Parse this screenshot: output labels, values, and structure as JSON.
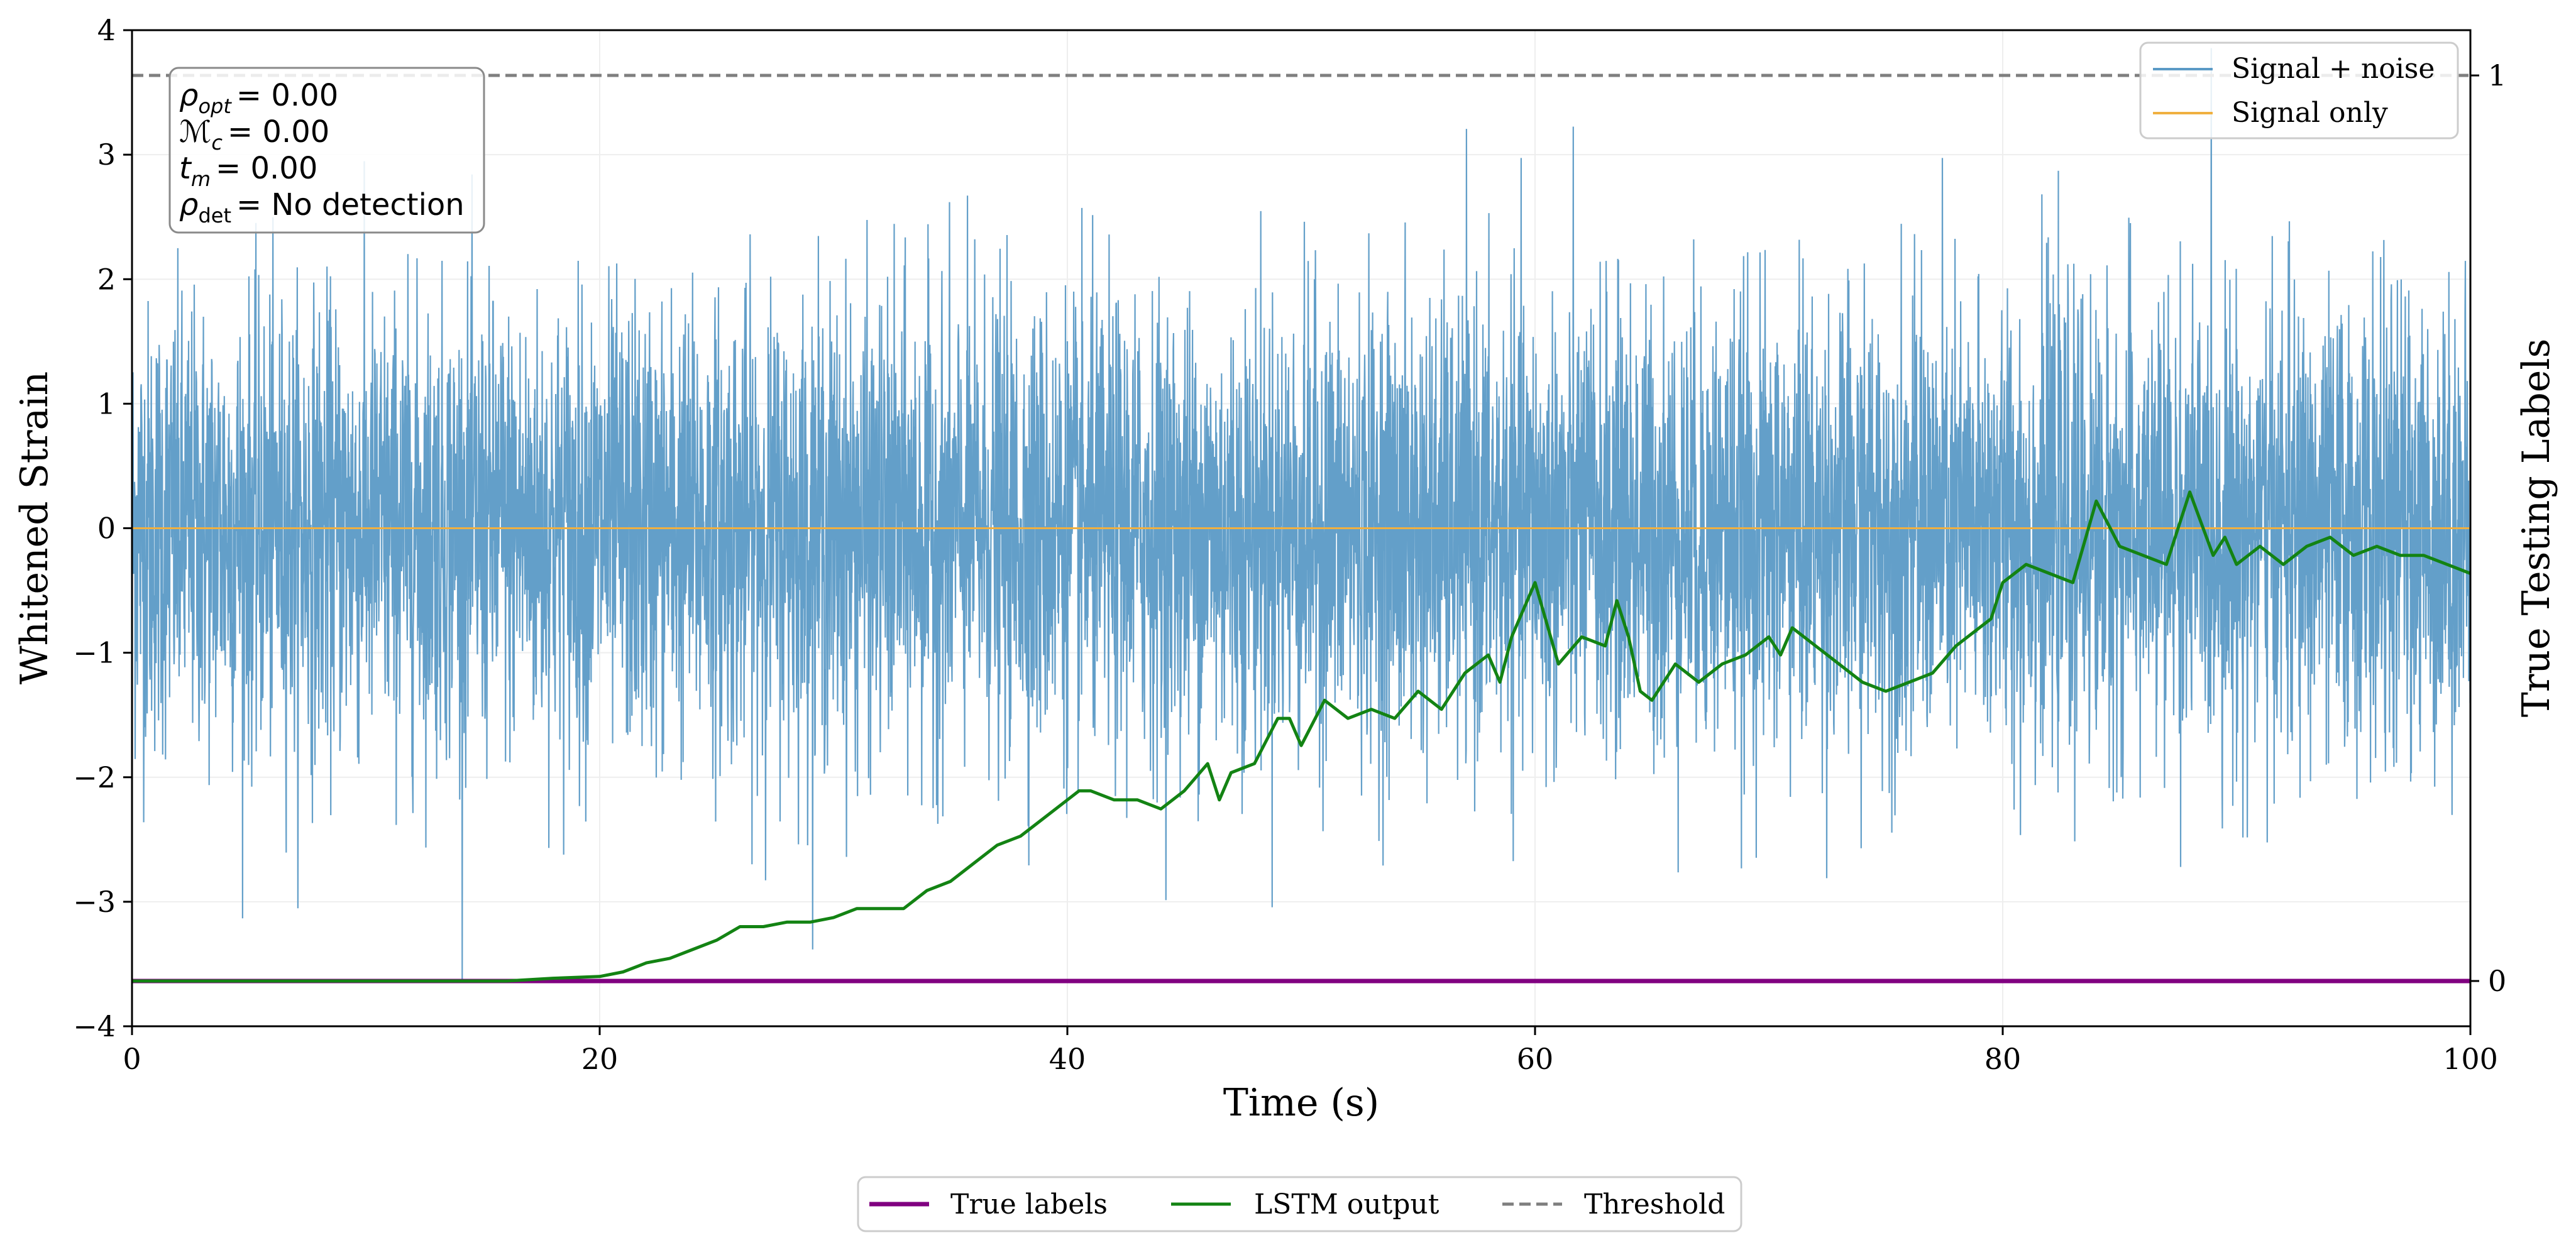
{
  "chart_data": {
    "type": "line",
    "xlabel": "Time (s)",
    "ylabel": "Whitened Strain",
    "y2label": "True Testing Labels",
    "xlim": [
      0,
      100
    ],
    "ylim": [
      -4,
      4
    ],
    "y2lim": [
      -0.05,
      1.05
    ],
    "x_ticks": [
      0,
      20,
      40,
      60,
      80,
      100
    ],
    "x_tick_labels": [
      "0",
      "20",
      "40",
      "60",
      "80",
      "100"
    ],
    "y_ticks": [
      -4,
      -3,
      -2,
      -1,
      0,
      1,
      2,
      3,
      4
    ],
    "y_tick_labels": [
      "−4",
      "−3",
      "−2",
      "−1",
      "0",
      "1",
      "2",
      "3",
      "4"
    ],
    "y2_ticks": [
      0,
      1
    ],
    "y2_tick_labels": [
      "0",
      "1"
    ],
    "grid": true,
    "series": [
      {
        "name": "Signal + noise",
        "axis": "left",
        "color": "#5b9ac6",
        "description": "Whitened noisy strain, dense fluctuation roughly between -2 and +2 with spikes to about ±3.5",
        "envelope": [
          -4,
          4
        ]
      },
      {
        "name": "Signal only",
        "axis": "left",
        "color": "#f0b040",
        "x": [
          0,
          100
        ],
        "y": [
          0,
          0
        ]
      },
      {
        "name": "True labels",
        "axis": "right",
        "color": "#800080",
        "x": [
          0,
          100
        ],
        "y": [
          0,
          0
        ]
      },
      {
        "name": "LSTM output",
        "axis": "right",
        "color": "#138313",
        "x": [
          0,
          4,
          8,
          12,
          16,
          18,
          20,
          21,
          22,
          23,
          24,
          25,
          26,
          27,
          28,
          29,
          30,
          31,
          32,
          33,
          34,
          35,
          36,
          37,
          38,
          39,
          40,
          40.5,
          41,
          42,
          43,
          44,
          45,
          46,
          46.5,
          47,
          48,
          49,
          49.5,
          50,
          51,
          52,
          53,
          54,
          55,
          56,
          57,
          58,
          58.5,
          59,
          60,
          61,
          62,
          63,
          63.5,
          64,
          64.5,
          65,
          66,
          67,
          68,
          69,
          70,
          70.5,
          71,
          72,
          73,
          74,
          75,
          76,
          77,
          78,
          79,
          79.5,
          80,
          81,
          82,
          83,
          84,
          85,
          86,
          87,
          88,
          89,
          89.5,
          90,
          91,
          92,
          93,
          94,
          95,
          96,
          97,
          98,
          99,
          100
        ],
        "y": [
          0,
          0,
          0,
          0,
          0,
          0.003,
          0.005,
          0.01,
          0.02,
          0.025,
          0.035,
          0.045,
          0.06,
          0.06,
          0.065,
          0.065,
          0.07,
          0.08,
          0.08,
          0.08,
          0.1,
          0.11,
          0.13,
          0.15,
          0.16,
          0.18,
          0.2,
          0.21,
          0.21,
          0.2,
          0.2,
          0.19,
          0.21,
          0.24,
          0.2,
          0.23,
          0.24,
          0.29,
          0.29,
          0.26,
          0.31,
          0.29,
          0.3,
          0.29,
          0.32,
          0.3,
          0.34,
          0.36,
          0.33,
          0.38,
          0.44,
          0.35,
          0.38,
          0.37,
          0.42,
          0.38,
          0.32,
          0.31,
          0.35,
          0.33,
          0.35,
          0.36,
          0.38,
          0.36,
          0.39,
          0.37,
          0.35,
          0.33,
          0.32,
          0.33,
          0.34,
          0.37,
          0.39,
          0.4,
          0.44,
          0.46,
          0.45,
          0.44,
          0.53,
          0.48,
          0.47,
          0.46,
          0.54,
          0.47,
          0.49,
          0.46,
          0.48,
          0.46,
          0.48,
          0.49,
          0.47,
          0.48,
          0.47,
          0.47,
          0.46,
          0.45
        ]
      },
      {
        "name": "Threshold",
        "axis": "right",
        "color": "#7f7f7f",
        "style": "dashed",
        "x": [
          0,
          100
        ],
        "y": [
          1,
          1
        ]
      }
    ],
    "legend_upper": {
      "placement": "top-right",
      "entries": [
        "Signal + noise",
        "Signal only"
      ]
    },
    "legend_lower": {
      "placement": "bottom-center",
      "entries": [
        "True labels",
        "LSTM output",
        "Threshold"
      ]
    },
    "annotation": {
      "placement": "top-left",
      "lines": [
        {
          "symbol": "ρ",
          "sub": "opt",
          "value": "= 0.00"
        },
        {
          "symbol": "ℳ",
          "sub": "c",
          "value": "= 0.00"
        },
        {
          "symbol": "t",
          "sub": "m",
          "value": "= 0.00"
        },
        {
          "symbol": "ρ",
          "sub": "det",
          "value": "= No detection"
        }
      ]
    }
  }
}
